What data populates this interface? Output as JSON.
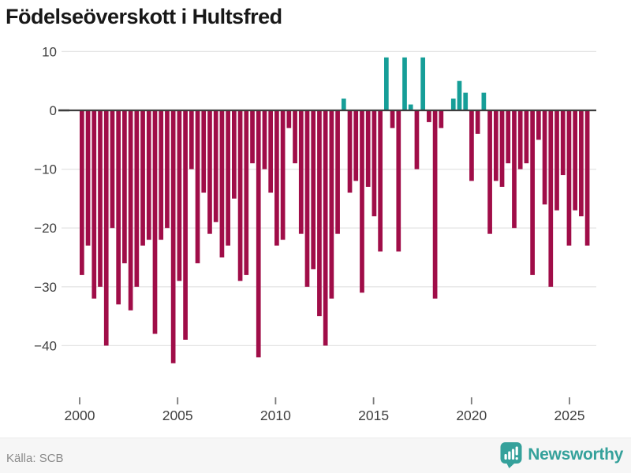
{
  "title": "Födelseöverskott i Hultsfred",
  "footer": {
    "source": "Källa: SCB",
    "brand": "Newsworthy"
  },
  "colors": {
    "negative_bar": "#a00d48",
    "positive_bar": "#169e98",
    "axis_line": "#3d3d3d",
    "gridline": "#e4e4e4",
    "tick_label": "#3f3f3f",
    "tick_mark": "#7a7a7a",
    "title_text": "#181818",
    "source_text": "#8a8a8a",
    "brand_teal": "#35a19b",
    "footer_bg": "#f6f6f6"
  },
  "chart_data": {
    "type": "bar",
    "title": "Födelseöverskott i Hultsfred",
    "xlabel": "",
    "ylabel": "",
    "x_tick_labels": [
      "2000",
      "2005",
      "2010",
      "2015",
      "2020",
      "2025"
    ],
    "y_ticks": [
      10,
      0,
      -10,
      -20,
      -30,
      -40
    ],
    "ylim": [
      -45,
      11
    ],
    "x_range_years": [
      2000,
      2026
    ],
    "grid": true,
    "legend": false,
    "series_note": "birth surplus per period, positive values teal, negative values dark red",
    "values": [
      -28,
      -23,
      -32,
      -30,
      -40,
      -20,
      -33,
      -26,
      -34,
      -30,
      -23,
      -22,
      -38,
      -22,
      -20,
      -43,
      -29,
      -39,
      -10,
      -26,
      -14,
      -21,
      -19,
      -25,
      -23,
      -15,
      -29,
      -28,
      -9,
      -42,
      -10,
      -14,
      -23,
      -22,
      -3,
      -9,
      -21,
      -30,
      -27,
      -35,
      -40,
      -32,
      -21,
      2,
      -14,
      -12,
      -31,
      -13,
      -18,
      -24,
      9,
      -3,
      -24,
      9,
      1,
      -10,
      9,
      -2,
      -32,
      -3,
      0,
      2,
      5,
      3,
      -12,
      -4,
      3,
      -21,
      -12,
      -13,
      -9,
      -20,
      -10,
      -9,
      -28,
      -5,
      -16,
      -30,
      -17,
      -11,
      -23,
      -17,
      -18,
      -23
    ]
  }
}
